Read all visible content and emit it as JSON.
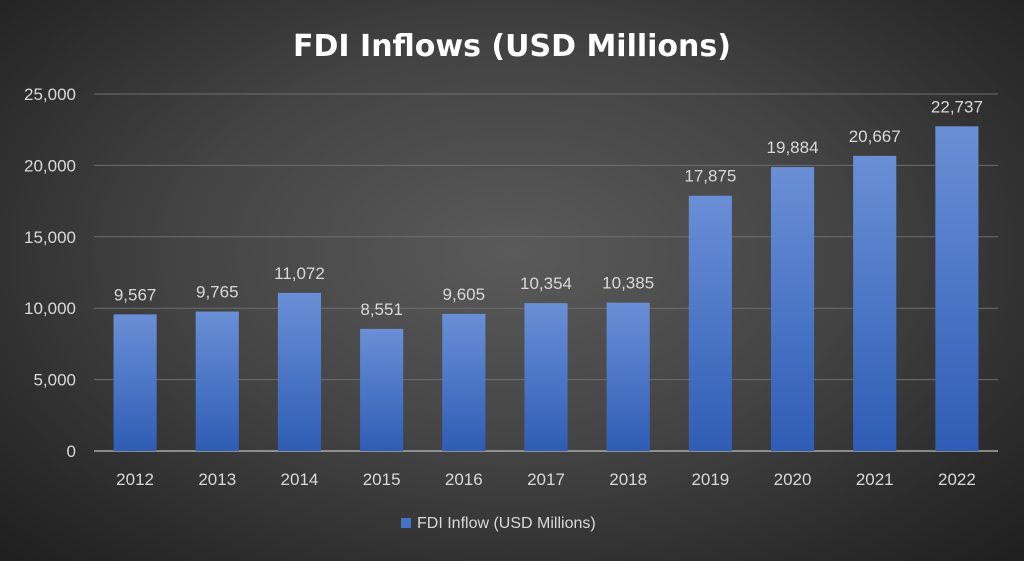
{
  "chart_data": {
    "type": "bar",
    "title": "FDI Inflows (USD Millions)",
    "xlabel": "",
    "ylabel": "",
    "categories": [
      "2012",
      "2013",
      "2014",
      "2015",
      "2016",
      "2017",
      "2018",
      "2019",
      "2020",
      "2021",
      "2022"
    ],
    "series": [
      {
        "name": "FDI Inflow (USD Millions)",
        "values": [
          9567,
          9765,
          11072,
          8551,
          9605,
          10354,
          10385,
          17875,
          19884,
          20667,
          22737
        ],
        "labels": [
          "9,567",
          "9,765",
          "11,072",
          "8,551",
          "9,605",
          "10,354",
          "10,385",
          "17,875",
          "19,884",
          "20,667",
          "22,737"
        ],
        "color": "#4472c4"
      }
    ],
    "ylim": [
      0,
      25000
    ],
    "yticks": [
      0,
      5000,
      10000,
      15000,
      20000,
      25000
    ],
    "ytick_labels": [
      "0",
      "5,000",
      "10,000",
      "15,000",
      "20,000",
      "25,000"
    ],
    "grid": true,
    "legend": "bottom"
  }
}
